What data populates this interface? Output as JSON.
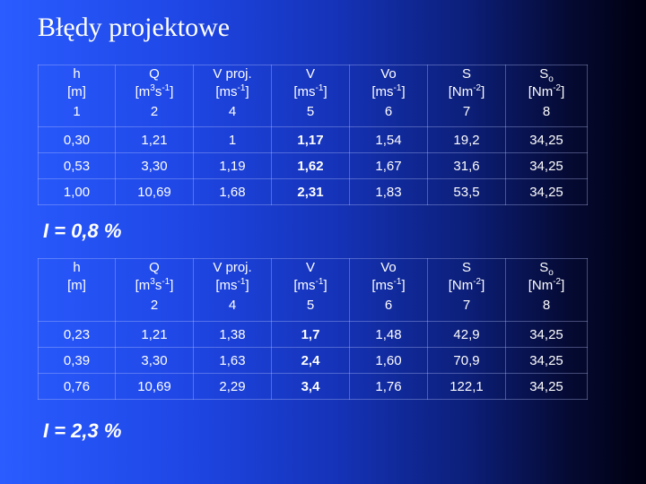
{
  "title": "Błędy projektowe",
  "table1": {
    "slope_label": "I = 0,8 %",
    "rows": [
      [
        "0,30",
        "1,21",
        "1",
        "1,17",
        "1,54",
        "19,2",
        "34,25"
      ],
      [
        "0,53",
        "3,30",
        "1,19",
        "1,62",
        "1,67",
        "31,6",
        "34,25"
      ],
      [
        "1,00",
        "10,69",
        "1,68",
        "2,31",
        "1,83",
        "53,5",
        "34,25"
      ]
    ]
  },
  "table2": {
    "slope_label": "I = 2,3 %",
    "rows": [
      [
        "0,23",
        "1,21",
        "1,38",
        "1,7",
        "1,48",
        "42,9",
        "34,25"
      ],
      [
        "0,39",
        "3,30",
        "1,63",
        "2,4",
        "1,60",
        "70,9",
        "34,25"
      ],
      [
        "0,76",
        "10,69",
        "2,29",
        "3,4",
        "1,76",
        "122,1",
        "34,25"
      ]
    ]
  },
  "headers": {
    "h": {
      "name": "h",
      "unit": "[m]"
    },
    "q": {
      "name": "Q",
      "unit_base": "[m",
      "unit_sup1": "3",
      "unit_mid": "s",
      "unit_sup2": "-1",
      "unit_end": "]"
    },
    "vproj": {
      "name": "V proj.",
      "unit_base": "[ms",
      "unit_sup": "-1",
      "unit_end": "]"
    },
    "v": {
      "name": "V",
      "unit_base": "[ms",
      "unit_sup": "-1",
      "unit_end": "]"
    },
    "vo": {
      "name": "Vo",
      "unit_base": "[ms",
      "unit_sup": "-1",
      "unit_end": "]"
    },
    "s": {
      "name": "S",
      "unit_base": "[Nm",
      "unit_sup": "-2",
      "unit_end": "]"
    },
    "so": {
      "name": "S",
      "name_sub": "o",
      "unit_base": "[Nm",
      "unit_sup": "-2",
      "unit_end": "]"
    }
  },
  "col_numbers_t1": [
    "1",
    "2",
    "4",
    "5",
    "6",
    "7",
    "8"
  ],
  "col_numbers_t2": [
    "",
    "2",
    "4",
    "5",
    "6",
    "7",
    "8"
  ]
}
